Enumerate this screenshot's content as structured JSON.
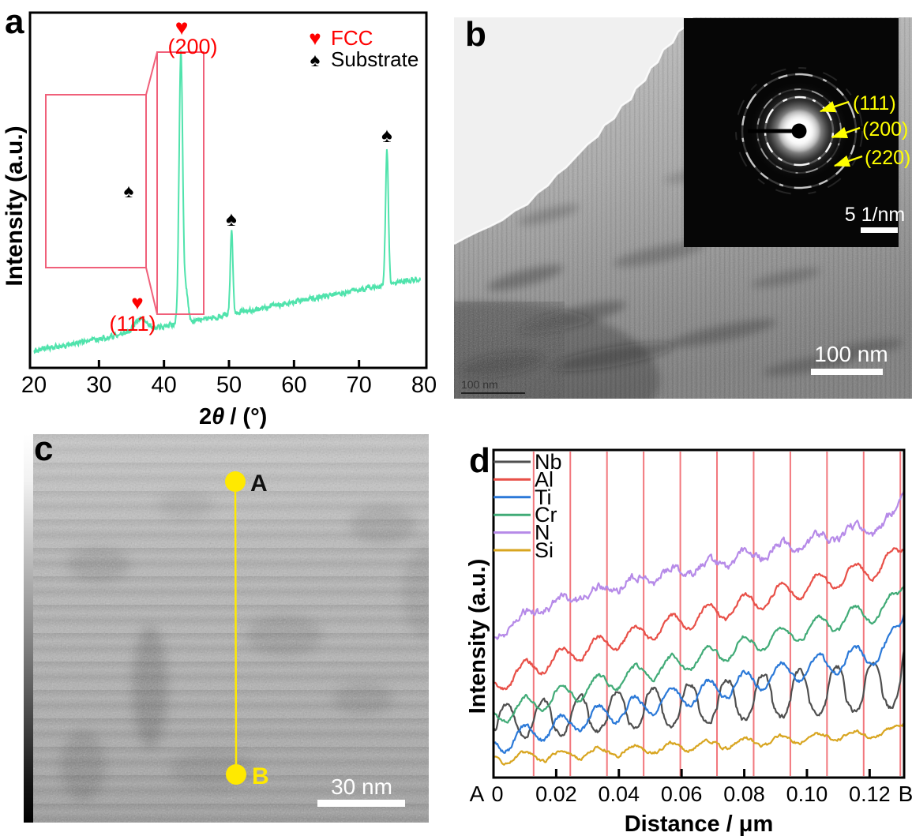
{
  "panel_a": {
    "letter": "a",
    "y_axis_title": "Intensity (a.u.)",
    "x_axis_title_parts": {
      "num": "2",
      "theta": "θ",
      "unit": "/ (°)"
    },
    "legend": [
      {
        "symbol": "♥",
        "label": "FCC",
        "color": "#fe0000"
      },
      {
        "symbol": "♠",
        "label": "Substrate",
        "color": "#000000"
      }
    ],
    "annotations": {
      "peak_111": "(111)",
      "peak_200": "(200)",
      "fcc_marker": "♥",
      "substrate_marker": "♠"
    },
    "callout_color": "#f0607a"
  },
  "panel_b": {
    "letter": "b",
    "scale_bar": "100 nm",
    "embedded_scale_bar": "100 nm",
    "inset": {
      "ring_labels": [
        "(111)",
        "(200)",
        "(220)"
      ],
      "scale_bar": "5 1/nm",
      "label_color": "#ffff00"
    }
  },
  "panel_c": {
    "letter": "c",
    "point_a": "A",
    "point_b": "B",
    "scale_bar": "30 nm",
    "annotation_color": "#ffe900"
  },
  "panel_d": {
    "letter": "d",
    "y_axis_title": "Intensity (a.u.)",
    "x_axis_title": "Distance / μm",
    "left_end_label": "A",
    "right_end_label": "B"
  },
  "chart_data": [
    {
      "panel": "a",
      "type": "line",
      "title": "",
      "xlabel": "2θ / (°)",
      "ylabel": "Intensity (a.u.)",
      "xlim": [
        20,
        80
      ],
      "xticks": [
        20,
        30,
        40,
        50,
        60,
        70,
        80
      ],
      "grid": false,
      "legend_position": "top-right",
      "series_color": "#50e3ac",
      "baseline": {
        "start_frac": 0.953,
        "end_frac": 0.747
      },
      "peaks": [
        {
          "label": "(111)",
          "phase": "FCC",
          "two_theta": 36.4,
          "rel_height": 0.038,
          "sigma_deg": 0.9
        },
        {
          "label": "(200)",
          "phase": "FCC",
          "two_theta": 42.6,
          "rel_height": 0.76,
          "sigma_deg": 0.28
        },
        {
          "label": "",
          "phase": "FCC",
          "two_theta": 43.4,
          "rel_height": 0.09,
          "sigma_deg": 0.3
        },
        {
          "label": "",
          "phase": "Substrate",
          "two_theta": 50.4,
          "rel_height": 0.235,
          "sigma_deg": 0.2
        },
        {
          "label": "",
          "phase": "Substrate",
          "two_theta": 74.3,
          "rel_height": 0.375,
          "sigma_deg": 0.22
        }
      ],
      "zoom_callout": {
        "source_box_two_theta": [
          39.0,
          46.1
        ],
        "magnified_box_two_theta": [
          21.8,
          37.3
        ]
      }
    },
    {
      "panel": "d",
      "type": "line",
      "title": "",
      "xlabel": "Distance / μm",
      "ylabel": "Intensity (a.u.)",
      "xlim": [
        0,
        0.131
      ],
      "xticks": [
        0,
        0.02,
        0.04,
        0.06,
        0.08,
        0.1,
        0.12
      ],
      "xtick_labels": [
        "0",
        "0.02",
        "0.04",
        "0.06",
        "0.08",
        "0.10",
        "0.12"
      ],
      "endpoint_labels": [
        "A",
        "B"
      ],
      "legend_position": "top-left",
      "gridlines": {
        "first_um": 0.0128,
        "period_um": 0.0117,
        "count": 11,
        "color": "#f2777d"
      },
      "series": [
        {
          "name": "Nb",
          "color": "#4f4f4f",
          "seed": 7,
          "base_start_frac": 0.845,
          "base_end_frac": 0.735,
          "amp_start_frac": 0.062,
          "amp_end_frac": 0.1,
          "in_phase_with_gridlines": true,
          "noise_frac": 0.012,
          "start_offset_frac": 0.0,
          "edge_spike_frac": 0.05
        },
        {
          "name": "Al",
          "color": "#e85048",
          "seed": 2,
          "base_start_frac": 0.685,
          "base_end_frac": 0.335,
          "amp_start_frac": 0.03,
          "amp_end_frac": 0.036,
          "in_phase_with_gridlines": false,
          "noise_frac": 0.01,
          "start_offset_frac": 0.04,
          "edge_spike_frac": 0.05
        },
        {
          "name": "Ti",
          "color": "#2b79d8",
          "seed": 5,
          "base_start_frac": 0.885,
          "base_end_frac": 0.6,
          "amp_start_frac": 0.034,
          "amp_end_frac": 0.04,
          "in_phase_with_gridlines": false,
          "noise_frac": 0.011,
          "start_offset_frac": 0.02,
          "edge_spike_frac": 0.13
        },
        {
          "name": "Cr",
          "color": "#41ab77",
          "seed": 3,
          "base_start_frac": 0.8,
          "base_end_frac": 0.47,
          "amp_start_frac": 0.03,
          "amp_end_frac": 0.034,
          "in_phase_with_gridlines": false,
          "noise_frac": 0.01,
          "start_offset_frac": 0.02,
          "edge_spike_frac": 0.07
        },
        {
          "name": "N",
          "color": "#b68ae8",
          "seed": 11,
          "base_start_frac": 0.5,
          "base_end_frac": 0.215,
          "amp_start_frac": 0.016,
          "amp_end_frac": 0.02,
          "in_phase_with_gridlines": false,
          "noise_frac": 0.02,
          "start_offset_frac": 0.08,
          "edge_spike_frac": 0.1
        },
        {
          "name": "Si",
          "color": "#d8a520",
          "seed": 13,
          "base_start_frac": 0.945,
          "base_end_frac": 0.86,
          "amp_start_frac": 0.018,
          "amp_end_frac": 0.012,
          "in_phase_with_gridlines": false,
          "noise_frac": 0.008,
          "start_offset_frac": 0.0,
          "edge_spike_frac": 0.03
        }
      ]
    }
  ]
}
